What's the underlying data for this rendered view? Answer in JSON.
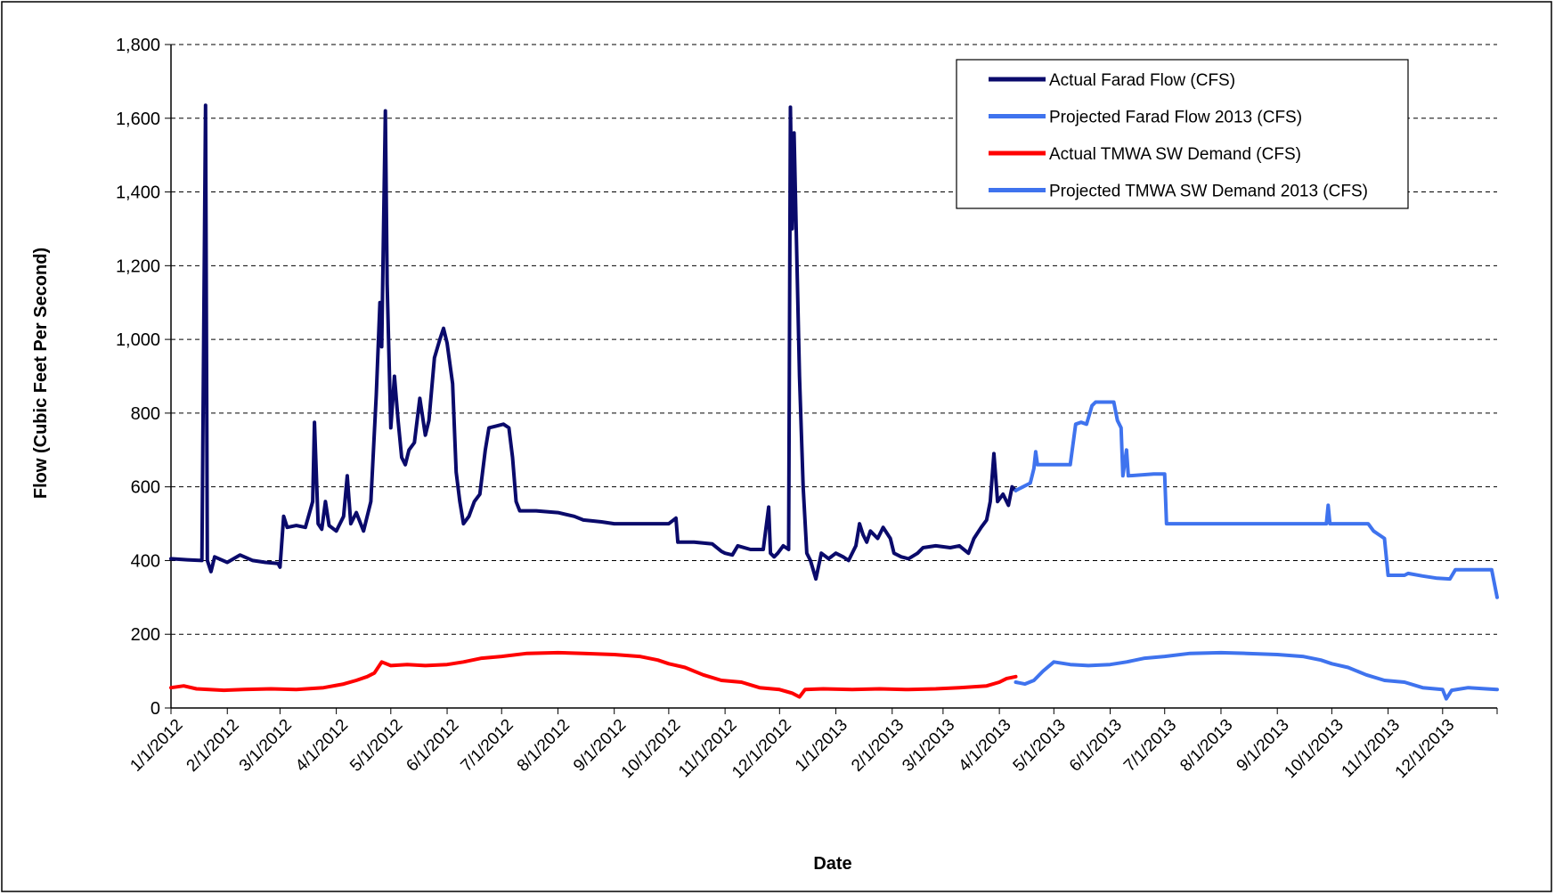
{
  "chart_data": {
    "type": "line",
    "title": "",
    "xlabel": "Date",
    "ylabel": "Flow (Cubic Feet Per Second)",
    "ylim": [
      0,
      1800
    ],
    "xlim": [
      "2012-01-01",
      "2013-12-31"
    ],
    "y_ticks": [
      0,
      200,
      400,
      600,
      800,
      1000,
      1200,
      1400,
      1600,
      1800
    ],
    "y_tick_labels": [
      "0",
      "200",
      "400",
      "600",
      "800",
      "1,000",
      "1,200",
      "1,400",
      "1,600",
      "1,800"
    ],
    "x_ticks": [
      "2012-01-01",
      "2012-02-01",
      "2012-03-01",
      "2012-04-01",
      "2012-05-01",
      "2012-06-01",
      "2012-07-01",
      "2012-08-01",
      "2012-09-01",
      "2012-10-01",
      "2012-11-01",
      "2012-12-01",
      "2013-01-01",
      "2013-02-01",
      "2013-03-01",
      "2013-04-01",
      "2013-05-01",
      "2013-06-01",
      "2013-07-01",
      "2013-08-01",
      "2013-09-01",
      "2013-10-01",
      "2013-11-01",
      "2013-12-01"
    ],
    "x_tick_labels": [
      "1/1/2012",
      "2/1/2012",
      "3/1/2012",
      "4/1/2012",
      "5/1/2012",
      "6/1/2012",
      "7/1/2012",
      "8/1/2012",
      "9/1/2012",
      "10/1/2012",
      "11/1/2012",
      "12/1/2012",
      "1/1/2013",
      "2/1/2013",
      "3/1/2013",
      "4/1/2013",
      "5/1/2013",
      "6/1/2013",
      "7/1/2013",
      "8/1/2013",
      "9/1/2013",
      "10/1/2013",
      "11/1/2013",
      "12/1/2013"
    ],
    "grid": "horizontal dashed",
    "legend_position": "top-right",
    "series": [
      {
        "name": "Actual Farad Flow  (CFS)",
        "color": "#0a0a6b",
        "points": [
          [
            "2012-01-01",
            405
          ],
          [
            "2012-01-10",
            402
          ],
          [
            "2012-01-18",
            400
          ],
          [
            "2012-01-20",
            1635
          ],
          [
            "2012-01-21",
            400
          ],
          [
            "2012-01-23",
            370
          ],
          [
            "2012-01-25",
            410
          ],
          [
            "2012-02-01",
            395
          ],
          [
            "2012-02-08",
            415
          ],
          [
            "2012-02-15",
            400
          ],
          [
            "2012-02-22",
            395
          ],
          [
            "2012-02-29",
            392
          ],
          [
            "2012-03-01",
            382
          ],
          [
            "2012-03-03",
            520
          ],
          [
            "2012-03-05",
            490
          ],
          [
            "2012-03-10",
            495
          ],
          [
            "2012-03-15",
            490
          ],
          [
            "2012-03-19",
            560
          ],
          [
            "2012-03-20",
            775
          ],
          [
            "2012-03-22",
            500
          ],
          [
            "2012-03-24",
            485
          ],
          [
            "2012-03-26",
            560
          ],
          [
            "2012-03-28",
            495
          ],
          [
            "2012-04-01",
            480
          ],
          [
            "2012-04-05",
            520
          ],
          [
            "2012-04-07",
            630
          ],
          [
            "2012-04-09",
            500
          ],
          [
            "2012-04-12",
            530
          ],
          [
            "2012-04-16",
            480
          ],
          [
            "2012-04-20",
            560
          ],
          [
            "2012-04-23",
            850
          ],
          [
            "2012-04-25",
            1100
          ],
          [
            "2012-04-26",
            980
          ],
          [
            "2012-04-28",
            1620
          ],
          [
            "2012-04-29",
            1150
          ],
          [
            "2012-05-01",
            760
          ],
          [
            "2012-05-03",
            900
          ],
          [
            "2012-05-05",
            780
          ],
          [
            "2012-05-07",
            680
          ],
          [
            "2012-05-09",
            660
          ],
          [
            "2012-05-11",
            700
          ],
          [
            "2012-05-14",
            720
          ],
          [
            "2012-05-17",
            840
          ],
          [
            "2012-05-20",
            740
          ],
          [
            "2012-05-22",
            780
          ],
          [
            "2012-05-25",
            950
          ],
          [
            "2012-05-28",
            1000
          ],
          [
            "2012-05-30",
            1030
          ],
          [
            "2012-06-01",
            990
          ],
          [
            "2012-06-04",
            880
          ],
          [
            "2012-06-06",
            640
          ],
          [
            "2012-06-08",
            560
          ],
          [
            "2012-06-10",
            500
          ],
          [
            "2012-06-13",
            520
          ],
          [
            "2012-06-16",
            560
          ],
          [
            "2012-06-19",
            580
          ],
          [
            "2012-06-22",
            700
          ],
          [
            "2012-06-24",
            760
          ],
          [
            "2012-06-28",
            765
          ],
          [
            "2012-07-02",
            770
          ],
          [
            "2012-07-05",
            760
          ],
          [
            "2012-07-07",
            680
          ],
          [
            "2012-07-09",
            560
          ],
          [
            "2012-07-11",
            535
          ],
          [
            "2012-07-20",
            535
          ],
          [
            "2012-08-01",
            530
          ],
          [
            "2012-08-10",
            520
          ],
          [
            "2012-08-15",
            510
          ],
          [
            "2012-08-25",
            505
          ],
          [
            "2012-09-01",
            500
          ],
          [
            "2012-09-15",
            500
          ],
          [
            "2012-09-25",
            500
          ],
          [
            "2012-10-01",
            500
          ],
          [
            "2012-10-05",
            515
          ],
          [
            "2012-10-06",
            450
          ],
          [
            "2012-10-15",
            450
          ],
          [
            "2012-10-25",
            445
          ],
          [
            "2012-10-30",
            425
          ],
          [
            "2012-11-01",
            420
          ],
          [
            "2012-11-05",
            415
          ],
          [
            "2012-11-08",
            440
          ],
          [
            "2012-11-15",
            430
          ],
          [
            "2012-11-22",
            430
          ],
          [
            "2012-11-25",
            545
          ],
          [
            "2012-11-26",
            420
          ],
          [
            "2012-11-28",
            410
          ],
          [
            "2012-11-30",
            420
          ],
          [
            "2012-12-03",
            440
          ],
          [
            "2012-12-06",
            430
          ],
          [
            "2012-12-07",
            1630
          ],
          [
            "2012-12-08",
            1300
          ],
          [
            "2012-12-09",
            1560
          ],
          [
            "2012-12-10",
            1330
          ],
          [
            "2012-12-12",
            900
          ],
          [
            "2012-12-14",
            600
          ],
          [
            "2012-12-16",
            420
          ],
          [
            "2012-12-18",
            400
          ],
          [
            "2012-12-21",
            350
          ],
          [
            "2012-12-24",
            420
          ],
          [
            "2012-12-28",
            405
          ],
          [
            "2013-01-01",
            420
          ],
          [
            "2013-01-05",
            410
          ],
          [
            "2013-01-08",
            400
          ],
          [
            "2013-01-12",
            440
          ],
          [
            "2013-01-14",
            500
          ],
          [
            "2013-01-16",
            470
          ],
          [
            "2013-01-18",
            450
          ],
          [
            "2013-01-20",
            480
          ],
          [
            "2013-01-24",
            460
          ],
          [
            "2013-01-27",
            490
          ],
          [
            "2013-01-31",
            460
          ],
          [
            "2013-02-02",
            420
          ],
          [
            "2013-02-06",
            410
          ],
          [
            "2013-02-10",
            405
          ],
          [
            "2013-02-15",
            420
          ],
          [
            "2013-02-18",
            435
          ],
          [
            "2013-02-25",
            440
          ],
          [
            "2013-03-05",
            435
          ],
          [
            "2013-03-10",
            440
          ],
          [
            "2013-03-15",
            420
          ],
          [
            "2013-03-18",
            460
          ],
          [
            "2013-03-22",
            490
          ],
          [
            "2013-03-25",
            510
          ],
          [
            "2013-03-27",
            560
          ],
          [
            "2013-03-29",
            690
          ],
          [
            "2013-03-31",
            560
          ],
          [
            "2013-04-03",
            580
          ],
          [
            "2013-04-06",
            550
          ],
          [
            "2013-04-08",
            600
          ],
          [
            "2013-04-10",
            590
          ]
        ]
      },
      {
        "name": "Projected Farad Flow  2013 (CFS)",
        "color": "#3f73ee",
        "points": [
          [
            "2013-04-10",
            590
          ],
          [
            "2013-04-14",
            600
          ],
          [
            "2013-04-18",
            610
          ],
          [
            "2013-04-20",
            650
          ],
          [
            "2013-04-21",
            695
          ],
          [
            "2013-04-22",
            660
          ],
          [
            "2013-05-10",
            660
          ],
          [
            "2013-05-13",
            770
          ],
          [
            "2013-05-16",
            775
          ],
          [
            "2013-05-19",
            770
          ],
          [
            "2013-05-22",
            820
          ],
          [
            "2013-05-24",
            830
          ],
          [
            "2013-06-03",
            830
          ],
          [
            "2013-06-05",
            780
          ],
          [
            "2013-06-07",
            760
          ],
          [
            "2013-06-08",
            630
          ],
          [
            "2013-06-10",
            700
          ],
          [
            "2013-06-11",
            630
          ],
          [
            "2013-06-25",
            635
          ],
          [
            "2013-07-01",
            635
          ],
          [
            "2013-07-02",
            500
          ],
          [
            "2013-07-15",
            500
          ],
          [
            "2013-08-01",
            500
          ],
          [
            "2013-08-15",
            500
          ],
          [
            "2013-09-01",
            500
          ],
          [
            "2013-09-15",
            500
          ],
          [
            "2013-09-28",
            500
          ],
          [
            "2013-09-29",
            550
          ],
          [
            "2013-09-30",
            500
          ],
          [
            "2013-10-15",
            500
          ],
          [
            "2013-10-21",
            500
          ],
          [
            "2013-10-24",
            480
          ],
          [
            "2013-10-27",
            470
          ],
          [
            "2013-10-30",
            460
          ],
          [
            "2013-11-01",
            360
          ],
          [
            "2013-11-10",
            360
          ],
          [
            "2013-11-12",
            365
          ],
          [
            "2013-11-20",
            358
          ],
          [
            "2013-11-28",
            352
          ],
          [
            "2013-12-05",
            350
          ],
          [
            "2013-12-08",
            375
          ],
          [
            "2013-12-28",
            375
          ],
          [
            "2013-12-31",
            300
          ]
        ]
      },
      {
        "name": "Actual TMWA SW Demand (CFS)",
        "color": "#ff0000",
        "points": [
          [
            "2012-01-01",
            55
          ],
          [
            "2012-01-08",
            60
          ],
          [
            "2012-01-15",
            52
          ],
          [
            "2012-01-22",
            50
          ],
          [
            "2012-01-30",
            48
          ],
          [
            "2012-02-10",
            50
          ],
          [
            "2012-02-25",
            52
          ],
          [
            "2012-03-10",
            50
          ],
          [
            "2012-03-25",
            55
          ],
          [
            "2012-04-05",
            65
          ],
          [
            "2012-04-12",
            75
          ],
          [
            "2012-04-18",
            85
          ],
          [
            "2012-04-22",
            95
          ],
          [
            "2012-04-26",
            125
          ],
          [
            "2012-05-01",
            115
          ],
          [
            "2012-05-10",
            118
          ],
          [
            "2012-05-20",
            115
          ],
          [
            "2012-06-01",
            118
          ],
          [
            "2012-06-10",
            125
          ],
          [
            "2012-06-20",
            135
          ],
          [
            "2012-07-01",
            140
          ],
          [
            "2012-07-15",
            148
          ],
          [
            "2012-08-01",
            150
          ],
          [
            "2012-08-15",
            148
          ],
          [
            "2012-09-01",
            145
          ],
          [
            "2012-09-15",
            140
          ],
          [
            "2012-09-25",
            130
          ],
          [
            "2012-10-01",
            120
          ],
          [
            "2012-10-10",
            110
          ],
          [
            "2012-10-20",
            90
          ],
          [
            "2012-10-30",
            75
          ],
          [
            "2012-11-10",
            70
          ],
          [
            "2012-11-20",
            55
          ],
          [
            "2012-12-01",
            50
          ],
          [
            "2012-12-08",
            40
          ],
          [
            "2012-12-12",
            30
          ],
          [
            "2012-12-15",
            50
          ],
          [
            "2012-12-25",
            52
          ],
          [
            "2013-01-10",
            50
          ],
          [
            "2013-01-25",
            52
          ],
          [
            "2013-02-10",
            50
          ],
          [
            "2013-02-25",
            52
          ],
          [
            "2013-03-10",
            55
          ],
          [
            "2013-03-25",
            60
          ],
          [
            "2013-04-01",
            70
          ],
          [
            "2013-04-05",
            80
          ],
          [
            "2013-04-10",
            85
          ]
        ]
      },
      {
        "name": "Projected TMWA SW Demand 2013 (CFS)",
        "color": "#3f73ee",
        "points": [
          [
            "2013-04-10",
            70
          ],
          [
            "2013-04-15",
            65
          ],
          [
            "2013-04-20",
            75
          ],
          [
            "2013-04-25",
            100
          ],
          [
            "2013-05-01",
            125
          ],
          [
            "2013-05-10",
            118
          ],
          [
            "2013-05-20",
            115
          ],
          [
            "2013-06-01",
            118
          ],
          [
            "2013-06-10",
            125
          ],
          [
            "2013-06-20",
            135
          ],
          [
            "2013-07-01",
            140
          ],
          [
            "2013-07-15",
            148
          ],
          [
            "2013-08-01",
            150
          ],
          [
            "2013-08-15",
            148
          ],
          [
            "2013-09-01",
            145
          ],
          [
            "2013-09-15",
            140
          ],
          [
            "2013-09-25",
            130
          ],
          [
            "2013-10-01",
            120
          ],
          [
            "2013-10-10",
            110
          ],
          [
            "2013-10-20",
            90
          ],
          [
            "2013-10-30",
            75
          ],
          [
            "2013-11-10",
            70
          ],
          [
            "2013-11-20",
            55
          ],
          [
            "2013-12-01",
            50
          ],
          [
            "2013-12-03",
            25
          ],
          [
            "2013-12-06",
            48
          ],
          [
            "2013-12-15",
            55
          ],
          [
            "2013-12-25",
            52
          ],
          [
            "2013-12-31",
            50
          ]
        ]
      }
    ]
  }
}
